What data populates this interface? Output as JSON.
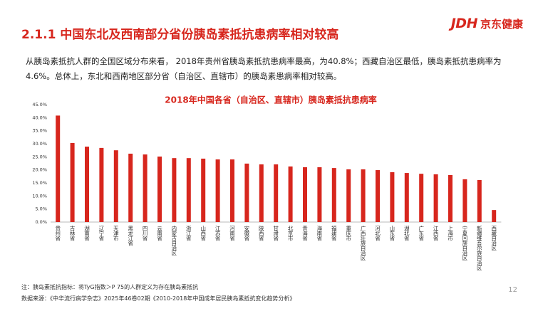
{
  "header": {
    "title": "2.1.1 中国东北及西南部分省份胰岛素抵抗患病率相对较高",
    "logo_mark": "JDH",
    "logo_text": "京东健康"
  },
  "summary": "从胰岛素抵抗人群的全国区域分布来看， 2018年贵州省胰岛素抵抗患病率最高，为40.8%；西藏自治区最低，胰岛素抵抗患病率为4.6%。总体上，东北和西南地区部分省（自治区、直辖市）的胰岛素患病率相对较高。",
  "chart_data": {
    "type": "bar",
    "title": "2018年中国各省（自治区、直辖市）胰岛素抵抗患病率",
    "categories": [
      "贵州省",
      "吉林省",
      "湖南省",
      "辽宁省",
      "天津市",
      "黑龙江省",
      "四川省",
      "云南省",
      "内蒙古自治区",
      "浙江省",
      "山西省",
      "江苏省",
      "河南省",
      "安徽省",
      "陕西省",
      "甘肃省",
      "北京市",
      "青海省",
      "海南省",
      "福建省",
      "重庆市",
      "广西壮族自治区",
      "河北省",
      "山东省",
      "湖北省",
      "广东省",
      "江西省",
      "上海市",
      "宁夏回族自治区",
      "新疆维吾尔族自治区",
      "西藏自治区"
    ],
    "values": [
      40.8,
      30.3,
      28.9,
      28.4,
      27.5,
      26.2,
      25.9,
      25.1,
      24.5,
      24.5,
      24.3,
      24.0,
      24.0,
      22.4,
      22.1,
      22.1,
      21.3,
      21.0,
      21.0,
      20.7,
      20.2,
      20.2,
      19.9,
      19.1,
      18.8,
      18.5,
      18.3,
      18.0,
      16.4,
      16.1,
      4.6
    ],
    "color": "#d7261d",
    "ylim": [
      0,
      45
    ],
    "yticks": [
      {
        "value": 0,
        "label": "0.0%"
      },
      {
        "value": 5,
        "label": "5.0%"
      },
      {
        "value": 10,
        "label": "10.0%"
      },
      {
        "value": 15,
        "label": "15.0%"
      },
      {
        "value": 20,
        "label": "20.0%"
      },
      {
        "value": 25,
        "label": "25.0%"
      },
      {
        "value": 30,
        "label": "30.0%"
      },
      {
        "value": 35,
        "label": "35.0%"
      },
      {
        "value": 40,
        "label": "40.0%"
      },
      {
        "value": 45,
        "label": "45.0%"
      }
    ],
    "grid": false
  },
  "notes": [
    "注：胰岛素抵抗指标：将TyG指数＞P 75的人群定义为存在胰岛素抵抗",
    "数据来源：《中华流行病学杂志》2025年46卷02期《2010-2018年中国成年居民胰岛素抵抗变化趋势分析》"
  ],
  "page_number": "12"
}
